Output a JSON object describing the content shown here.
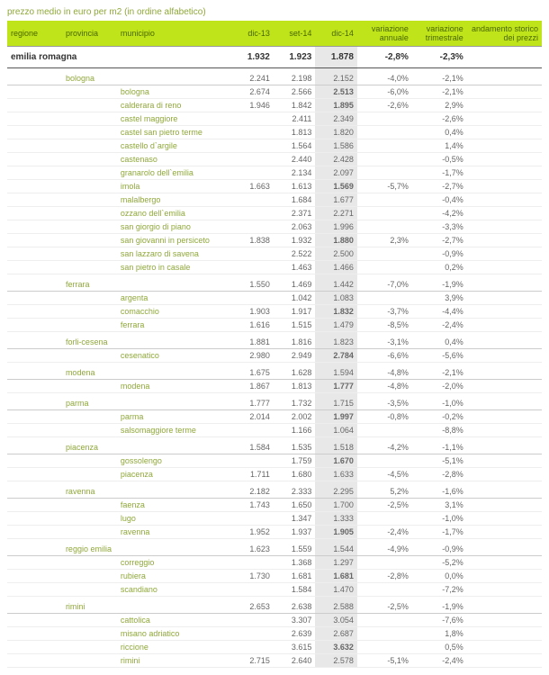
{
  "title": "prezzo medio in euro per m2 (in ordine alfabetico)",
  "headers": {
    "regione": "regione",
    "provincia": "provincia",
    "municipio": "municipio",
    "dic13": "dic-13",
    "set14": "set-14",
    "dic14": "dic-14",
    "var_ann": "variazione annuale",
    "var_tri": "variazione trimestrale",
    "andamento": "andamento storico dei prezzi"
  },
  "region": {
    "name": "emilia romagna",
    "dic13": "1.932",
    "set14": "1.923",
    "dic14": "1.878",
    "var_ann": "-2,8%",
    "var_tri": "-2,3%"
  },
  "provinces": [
    {
      "name": "bologna",
      "dic13": "2.241",
      "set14": "2.198",
      "dic14": "2.152",
      "var_ann": "-4,0%",
      "var_tri": "-2,1%",
      "muns": [
        {
          "name": "bologna",
          "dic13": "2.674",
          "set14": "2.566",
          "dic14": "2.513",
          "dic14_blue": true,
          "var_ann": "-6,0%",
          "var_tri": "-2,1%"
        },
        {
          "name": "calderara di reno",
          "dic13": "1.946",
          "set14": "1.842",
          "dic14": "1.895",
          "dic14_blue": true,
          "var_ann": "-2,6%",
          "var_tri": "2,9%",
          "tri_pos": true
        },
        {
          "name": "castel maggiore",
          "dic13": "",
          "set14": "2.411",
          "dic14": "2.349",
          "var_ann": "",
          "var_tri": "-2,6%"
        },
        {
          "name": "castel san pietro terme",
          "dic13": "",
          "set14": "1.813",
          "dic14": "1.820",
          "var_ann": "",
          "var_tri": "0,4%",
          "tri_pos": false,
          "tri_neutral": true
        },
        {
          "name": "castello d`argile",
          "dic13": "",
          "set14": "1.564",
          "dic14": "1.586",
          "var_ann": "",
          "var_tri": "1,4%",
          "tri_neutral": true
        },
        {
          "name": "castenaso",
          "dic13": "",
          "set14": "2.440",
          "dic14": "2.428",
          "var_ann": "",
          "var_tri": "-0,5%"
        },
        {
          "name": "granarolo dell`emilia",
          "dic13": "",
          "set14": "2.134",
          "dic14": "2.097",
          "var_ann": "",
          "var_tri": "-1,7%"
        },
        {
          "name": "imola",
          "dic13": "1.663",
          "set14": "1.613",
          "dic14": "1.569",
          "dic14_blue": true,
          "var_ann": "-5,7%",
          "var_tri": "-2,7%"
        },
        {
          "name": "malalbergo",
          "dic13": "",
          "set14": "1.684",
          "dic14": "1.677",
          "var_ann": "",
          "var_tri": "-0,4%"
        },
        {
          "name": "ozzano dell`emilia",
          "dic13": "",
          "set14": "2.371",
          "dic14": "2.271",
          "var_ann": "",
          "var_tri": "-4,2%"
        },
        {
          "name": "san giorgio di piano",
          "dic13": "",
          "set14": "2.063",
          "dic14": "1.996",
          "var_ann": "",
          "var_tri": "-3,3%"
        },
        {
          "name": "san giovanni in persiceto",
          "dic13": "1.838",
          "set14": "1.932",
          "dic14": "1.880",
          "dic14_blue": true,
          "var_ann": "2,3%",
          "ann_pos": true,
          "var_tri": "-2,7%"
        },
        {
          "name": "san lazzaro di savena",
          "dic13": "",
          "set14": "2.522",
          "dic14": "2.500",
          "var_ann": "",
          "var_tri": "-0,9%"
        },
        {
          "name": "san pietro in casale",
          "dic13": "",
          "set14": "1.463",
          "dic14": "1.466",
          "var_ann": "",
          "var_tri": "0,2%",
          "tri_neutral": true
        }
      ]
    },
    {
      "name": "ferrara",
      "dic13": "1.550",
      "set14": "1.469",
      "dic14": "1.442",
      "var_ann": "-7,0%",
      "var_tri": "-1,9%",
      "muns": [
        {
          "name": "argenta",
          "dic13": "",
          "set14": "1.042",
          "dic14": "1.083",
          "var_ann": "",
          "var_tri": "3,9%",
          "tri_pos": true
        },
        {
          "name": "comacchio",
          "dic13": "1.903",
          "set14": "1.917",
          "dic14": "1.832",
          "dic14_blue": true,
          "var_ann": "-3,7%",
          "var_tri": "-4,4%"
        },
        {
          "name": "ferrara",
          "dic13": "1.616",
          "set14": "1.515",
          "dic14": "1.479",
          "var_ann": "-8,5%",
          "var_tri": "-2,4%"
        }
      ]
    },
    {
      "name": "forli-cesena",
      "dic13": "1.881",
      "set14": "1.816",
      "dic14": "1.823",
      "var_ann": "-3,1%",
      "var_tri": "0,4%",
      "tri_neutral": true,
      "muns": [
        {
          "name": "cesenatico",
          "dic13": "2.980",
          "set14": "2.949",
          "dic14": "2.784",
          "dic14_blue": true,
          "var_ann": "-6,6%",
          "var_tri": "-5,6%"
        }
      ]
    },
    {
      "name": "modena",
      "dic13": "1.675",
      "set14": "1.628",
      "dic14": "1.594",
      "var_ann": "-4,8%",
      "var_tri": "-2,1%",
      "muns": [
        {
          "name": "modena",
          "dic13": "1.867",
          "set14": "1.813",
          "dic14": "1.777",
          "dic14_blue": true,
          "var_ann": "-4,8%",
          "var_tri": "-2,0%"
        }
      ]
    },
    {
      "name": "parma",
      "dic13": "1.777",
      "set14": "1.732",
      "dic14": "1.715",
      "var_ann": "-3,5%",
      "var_tri": "-1,0%",
      "muns": [
        {
          "name": "parma",
          "dic13": "2.014",
          "set14": "2.002",
          "dic14": "1.997",
          "dic14_blue": true,
          "var_ann": "-0,8%",
          "var_tri": "-0,2%"
        },
        {
          "name": "salsomaggiore terme",
          "dic13": "",
          "set14": "1.166",
          "dic14": "1.064",
          "var_ann": "",
          "var_tri": "-8,8%"
        }
      ]
    },
    {
      "name": "piacenza",
      "dic13": "1.584",
      "set14": "1.535",
      "dic14": "1.518",
      "var_ann": "-4,2%",
      "var_tri": "-1,1%",
      "muns": [
        {
          "name": "gossolengo",
          "dic13": "",
          "set14": "1.759",
          "dic14": "1.670",
          "dic14_blue": true,
          "var_ann": "",
          "var_tri": "-5,1%"
        },
        {
          "name": "piacenza",
          "dic13": "1.711",
          "set14": "1.680",
          "dic14": "1.633",
          "var_ann": "-4,5%",
          "var_tri": "-2,8%"
        }
      ]
    },
    {
      "name": "ravenna",
      "dic13": "2.182",
      "set14": "2.333",
      "dic14": "2.295",
      "var_ann": "5,2%",
      "ann_pos": false,
      "ann_neutral": true,
      "var_tri": "-1,6%",
      "muns": [
        {
          "name": "faenza",
          "dic13": "1.743",
          "set14": "1.650",
          "dic14": "1.700",
          "var_ann": "-2,5%",
          "var_tri": "3,1%",
          "tri_pos": true
        },
        {
          "name": "lugo",
          "dic13": "",
          "set14": "1.347",
          "dic14": "1.333",
          "var_ann": "",
          "var_tri": "-1,0%"
        },
        {
          "name": "ravenna",
          "dic13": "1.952",
          "set14": "1.937",
          "dic14": "1.905",
          "dic14_blue": true,
          "var_ann": "-2,4%",
          "var_tri": "-1,7%"
        }
      ]
    },
    {
      "name": "reggio emilia",
      "dic13": "1.623",
      "set14": "1.559",
      "dic14": "1.544",
      "var_ann": "-4,9%",
      "var_tri": "-0,9%",
      "muns": [
        {
          "name": "correggio",
          "dic13": "",
          "set14": "1.368",
          "dic14": "1.297",
          "var_ann": "",
          "var_tri": "-5,2%"
        },
        {
          "name": "rubiera",
          "dic13": "1.730",
          "set14": "1.681",
          "dic14": "1.681",
          "dic14_blue": true,
          "var_ann": "-2,8%",
          "var_tri": "0,0%",
          "tri_neutral": true
        },
        {
          "name": "scandiano",
          "dic13": "",
          "set14": "1.584",
          "dic14": "1.470",
          "var_ann": "",
          "var_tri": "-7,2%"
        }
      ]
    },
    {
      "name": "rimini",
      "dic13": "2.653",
      "set14": "2.638",
      "dic14": "2.588",
      "var_ann": "-2,5%",
      "var_tri": "-1,9%",
      "muns": [
        {
          "name": "cattolica",
          "dic13": "",
          "set14": "3.307",
          "dic14": "3.054",
          "var_ann": "",
          "var_tri": "-7,6%"
        },
        {
          "name": "misano adriatico",
          "dic13": "",
          "set14": "2.639",
          "dic14": "2.687",
          "var_ann": "",
          "var_tri": "1,8%",
          "tri_pos": true
        },
        {
          "name": "riccione",
          "dic13": "",
          "set14": "3.615",
          "dic14": "3.632",
          "dic14_blue": true,
          "var_ann": "",
          "var_tri": "0,5%",
          "tri_neutral": true
        },
        {
          "name": "rimini",
          "dic13": "2.715",
          "set14": "2.640",
          "dic14": "2.578",
          "var_ann": "-5,1%",
          "var_tri": "-2,4%"
        }
      ]
    }
  ]
}
